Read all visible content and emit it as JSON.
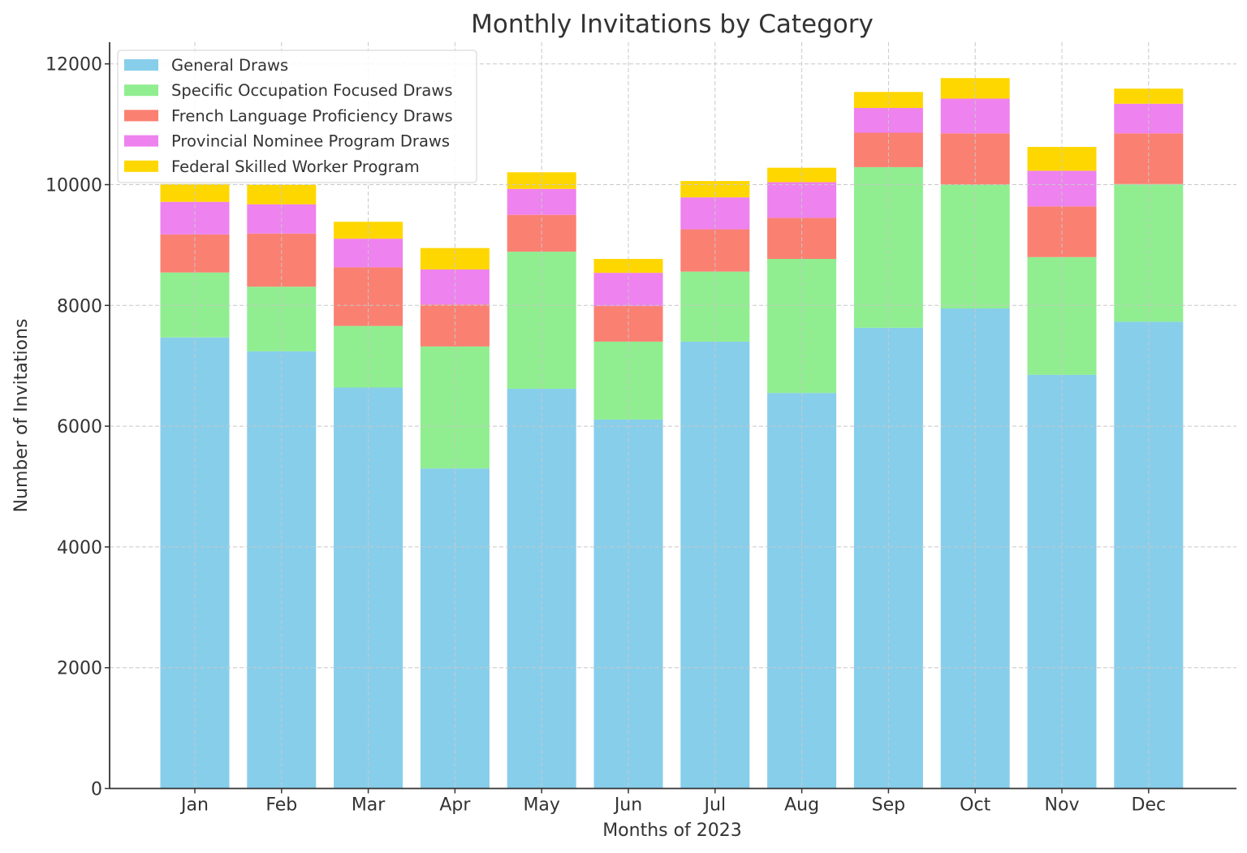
{
  "chart_data": {
    "type": "bar",
    "stacked": true,
    "title": "Monthly Invitations by Category",
    "xlabel": "Months of 2023",
    "ylabel": "Number of Invitations",
    "ylim": [
      0,
      12300
    ],
    "yticks": [
      0,
      2000,
      4000,
      6000,
      8000,
      10000,
      12000
    ],
    "grid": true,
    "legend_position": "top-left",
    "categories": [
      "Jan",
      "Feb",
      "Mar",
      "Apr",
      "May",
      "Jun",
      "Jul",
      "Aug",
      "Sep",
      "Oct",
      "Nov",
      "Dec"
    ],
    "series": [
      {
        "name": "General Draws",
        "color": "#87CEEB",
        "values": [
          7470,
          7240,
          6640,
          5300,
          6620,
          6110,
          7400,
          6550,
          7630,
          7950,
          6850,
          7730
        ]
      },
      {
        "name": "Specific Occupation Focused Draws",
        "color": "#90EE90",
        "values": [
          1075,
          1070,
          1020,
          2020,
          2270,
          1290,
          1160,
          2220,
          2660,
          2050,
          1950,
          2280
        ]
      },
      {
        "name": "French Language Proficiency Draws",
        "color": "#FA8072",
        "values": [
          630,
          880,
          970,
          695,
          610,
          590,
          700,
          680,
          570,
          850,
          840,
          840
        ]
      },
      {
        "name": "Provincial Nominee Program Draws",
        "color": "#EE82EE",
        "values": [
          540,
          485,
          475,
          580,
          430,
          550,
          530,
          590,
          410,
          575,
          590,
          490
        ]
      },
      {
        "name": "Federal Skilled Worker Program",
        "color": "#FFD700",
        "values": [
          295,
          325,
          280,
          355,
          275,
          230,
          270,
          240,
          265,
          340,
          395,
          250
        ]
      }
    ]
  }
}
